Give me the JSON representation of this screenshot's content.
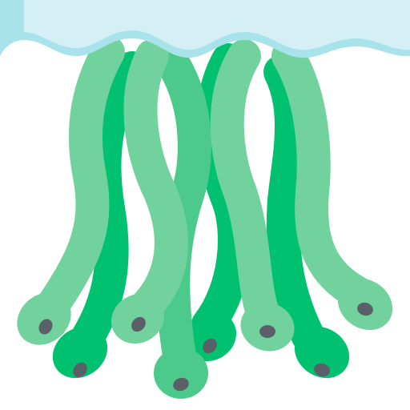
{
  "illustration": {
    "subject": "icon-illustration",
    "colors": {
      "water_surface": "#d5f0f5",
      "water_edge": "#a8e3ec",
      "tentacle_light": "#72d29e",
      "tentacle_mid": "#4cca8c",
      "tentacle_dark": "#00c170",
      "spot": "#5a6068",
      "background": "#ffffff"
    }
  }
}
